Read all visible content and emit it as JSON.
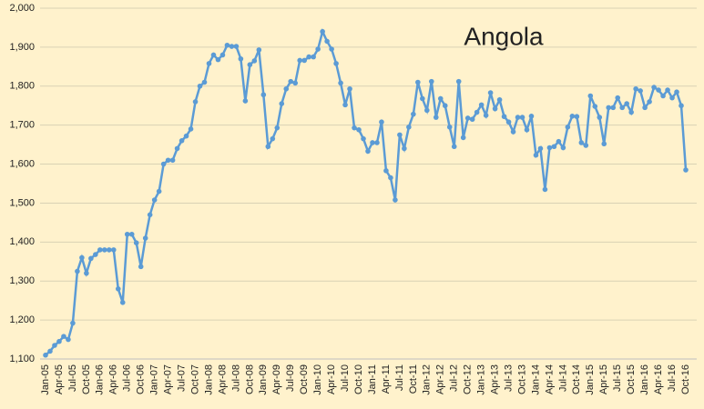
{
  "chart_data": {
    "type": "line",
    "title": "Angola",
    "categories": [
      "Jan-05",
      null,
      null,
      "Apr-05",
      null,
      null,
      "Jul-05",
      null,
      null,
      "Oct-05",
      null,
      null,
      "Jan-06",
      null,
      null,
      "Apr-06",
      null,
      null,
      "Jul-06",
      null,
      null,
      "Oct-06",
      null,
      null,
      "Jan-07",
      null,
      null,
      "Apr-07",
      null,
      null,
      "Jul-07",
      null,
      null,
      "Oct-07",
      null,
      null,
      "Jan-08",
      null,
      null,
      "Apr-08",
      null,
      null,
      "Jul-08",
      null,
      null,
      "Oct-08",
      null,
      null,
      "Jan-09",
      null,
      null,
      "Apr-09",
      null,
      null,
      "Jul-09",
      null,
      null,
      "Oct-09",
      null,
      null,
      "Jan-10",
      null,
      null,
      "Apr-10",
      null,
      null,
      "Jul-10",
      null,
      null,
      "Oct-10",
      null,
      null,
      "Jan-11",
      null,
      null,
      "Apr-11",
      null,
      null,
      "Jul-11",
      null,
      null,
      "Oct-11",
      null,
      null,
      "Jan-12",
      null,
      null,
      "Apr-12",
      null,
      null,
      "Jul-12",
      null,
      null,
      "Oct-12",
      null,
      null,
      "Jan-13",
      null,
      null,
      "Apr-13",
      null,
      null,
      "Jul-13",
      null,
      null,
      "Oct-13",
      null,
      null,
      "Jan-14",
      null,
      null,
      "Apr-14",
      null,
      null,
      "Jul-14",
      null,
      null,
      "Oct-14",
      null,
      null,
      "Jan-15",
      null,
      null,
      "Apr-15",
      null,
      null,
      "Jul-15",
      null,
      null,
      "Oct-15",
      null,
      null,
      "Jan-16",
      null,
      null,
      "Apr-16",
      null,
      null,
      "Jul-16",
      null,
      null,
      "Oct-16"
    ],
    "values": [
      1110,
      1120,
      1135,
      1145,
      1158,
      1150,
      1192,
      1325,
      1360,
      1320,
      1358,
      1368,
      1380,
      1380,
      1380,
      1380,
      1280,
      1245,
      1420,
      1420,
      1398,
      1337,
      1410,
      1470,
      1508,
      1530,
      1600,
      1610,
      1610,
      1640,
      1660,
      1672,
      1690,
      1760,
      1800,
      1810,
      1858,
      1880,
      1868,
      1880,
      1905,
      1902,
      1902,
      1870,
      1762,
      1855,
      1865,
      1893,
      1778,
      1645,
      1665,
      1693,
      1755,
      1793,
      1812,
      1808,
      1866,
      1866,
      1875,
      1875,
      1895,
      1940,
      1915,
      1895,
      1858,
      1808,
      1752,
      1793,
      1693,
      1688,
      1665,
      1633,
      1655,
      1655,
      1708,
      1583,
      1565,
      1508,
      1675,
      1640,
      1695,
      1728,
      1810,
      1768,
      1738,
      1812,
      1720,
      1768,
      1750,
      1695,
      1645,
      1812,
      1668,
      1718,
      1715,
      1733,
      1752,
      1725,
      1783,
      1742,
      1765,
      1722,
      1708,
      1683,
      1720,
      1720,
      1688,
      1723,
      1623,
      1640,
      1535,
      1642,
      1645,
      1658,
      1642,
      1695,
      1723,
      1722,
      1655,
      1648,
      1775,
      1748,
      1720,
      1652,
      1745,
      1745,
      1770,
      1745,
      1755,
      1733,
      1793,
      1788,
      1745,
      1760,
      1797,
      1790,
      1775,
      1790,
      1770,
      1785,
      1750,
      1585
    ],
    "color": "#5b9bd5",
    "ylim": [
      1100,
      2000
    ],
    "yticks": [
      {
        "value": 1100,
        "label": "1,100"
      },
      {
        "value": 1200,
        "label": "1,200"
      },
      {
        "value": 1300,
        "label": "1,300"
      },
      {
        "value": 1400,
        "label": "1,400"
      },
      {
        "value": 1500,
        "label": "1,500"
      },
      {
        "value": 1600,
        "label": "1,600"
      },
      {
        "value": 1700,
        "label": "1,700"
      },
      {
        "value": 1800,
        "label": "1,800"
      },
      {
        "value": 1900,
        "label": "1,900"
      },
      {
        "value": 2000,
        "label": "2,000"
      }
    ],
    "grid": true
  }
}
